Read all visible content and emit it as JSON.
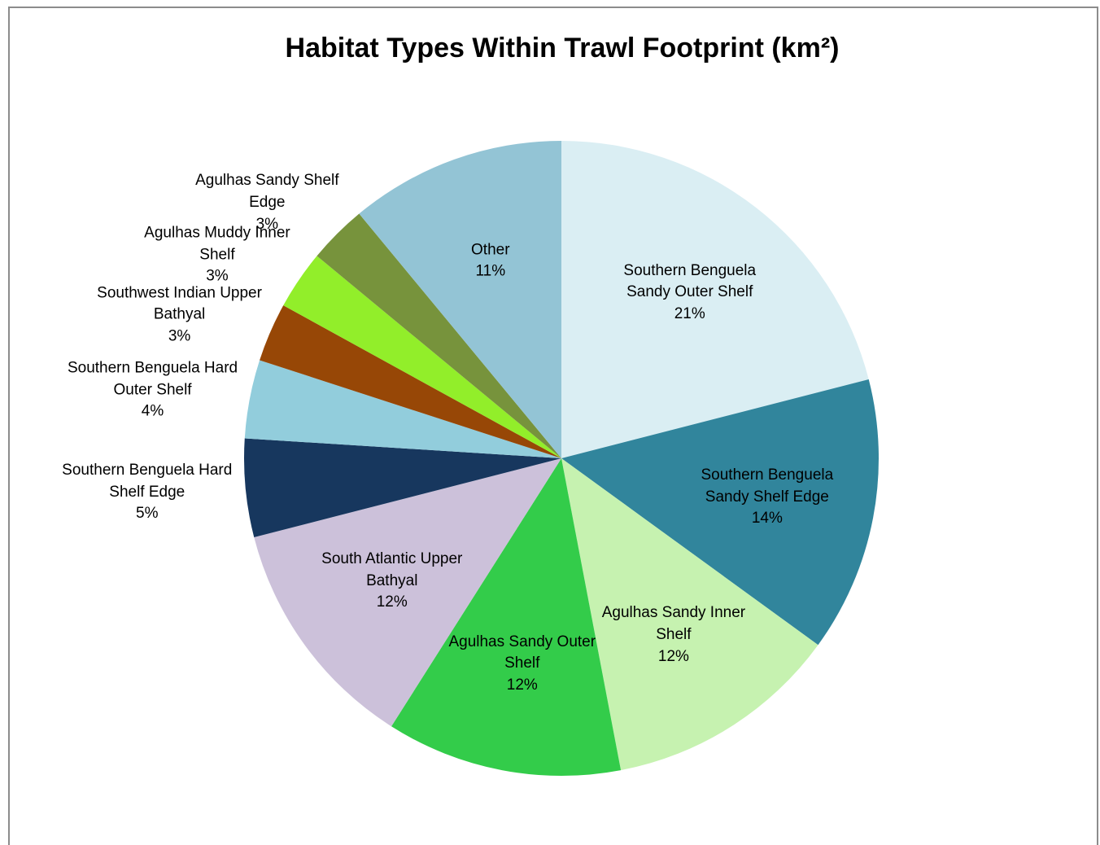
{
  "chart_data": {
    "type": "pie",
    "title": "Habitat Types Within Trawl Footprint (km²)",
    "categories": [
      "Southern Benguela Sandy Outer Shelf",
      "Southern Benguela Sandy Shelf Edge",
      "Agulhas Sandy Inner Shelf",
      "Agulhas Sandy Outer Shelf",
      "South Atlantic Upper Bathyal",
      "Southern Benguela Hard Shelf Edge",
      "Southern Benguela Hard Outer Shelf",
      "Southwest Indian Upper Bathyal",
      "Agulhas Muddy Inner Shelf",
      "Agulhas Sandy Shelf Edge",
      "Other"
    ],
    "values": [
      21,
      14,
      12,
      12,
      12,
      5,
      4,
      3,
      3,
      3,
      11
    ],
    "value_labels": [
      "21%",
      "14%",
      "12%",
      "12%",
      "12%",
      "5%",
      "4%",
      "3%",
      "3%",
      "3%",
      "11%"
    ],
    "colors": [
      "#daeef3",
      "#31859c",
      "#c6f2b0",
      "#33cc4a",
      "#ccc1da",
      "#17375e",
      "#92cddc",
      "#974706",
      "#92ee2a",
      "#77933c",
      "#93c4d5"
    ]
  }
}
